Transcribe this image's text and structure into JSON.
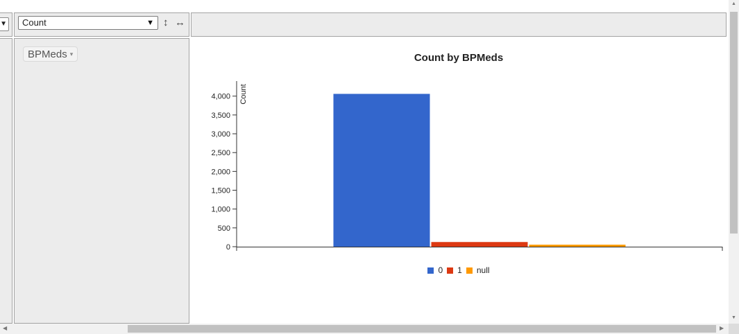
{
  "aggregator": {
    "selected": "Count",
    "arrow_glyph": "▼",
    "sort_rows_glyph": "↕",
    "sort_cols_glyph": "↔"
  },
  "left_stub": {
    "arrow_glyph": "▼"
  },
  "row_attributes": [
    {
      "label": "BPMeds",
      "triangle_glyph": "▾"
    }
  ],
  "chart_data": {
    "type": "bar",
    "title": "Count by BPMeds",
    "xlabel": "",
    "ylabel": "Count",
    "ylim": [
      0,
      4400
    ],
    "yticks": [
      0,
      500,
      1000,
      1500,
      2000,
      2500,
      3000,
      3500,
      4000
    ],
    "ytick_labels": [
      "0",
      "500",
      "1,000",
      "1,500",
      "2,000",
      "2,500",
      "3,000",
      "3,500",
      "4,000"
    ],
    "categories": [
      ""
    ],
    "series": [
      {
        "name": "0",
        "values": [
          4060
        ],
        "color": "#3366cc"
      },
      {
        "name": "1",
        "values": [
          124
        ],
        "color": "#dc3912"
      },
      {
        "name": "null",
        "values": [
          53
        ],
        "color": "#ff9900"
      }
    ],
    "legend_position": "bottom",
    "grid": false
  },
  "scrollbars": {
    "up_glyph": "▲",
    "down_glyph": "▼",
    "left_glyph": "◀",
    "right_glyph": "▶"
  }
}
